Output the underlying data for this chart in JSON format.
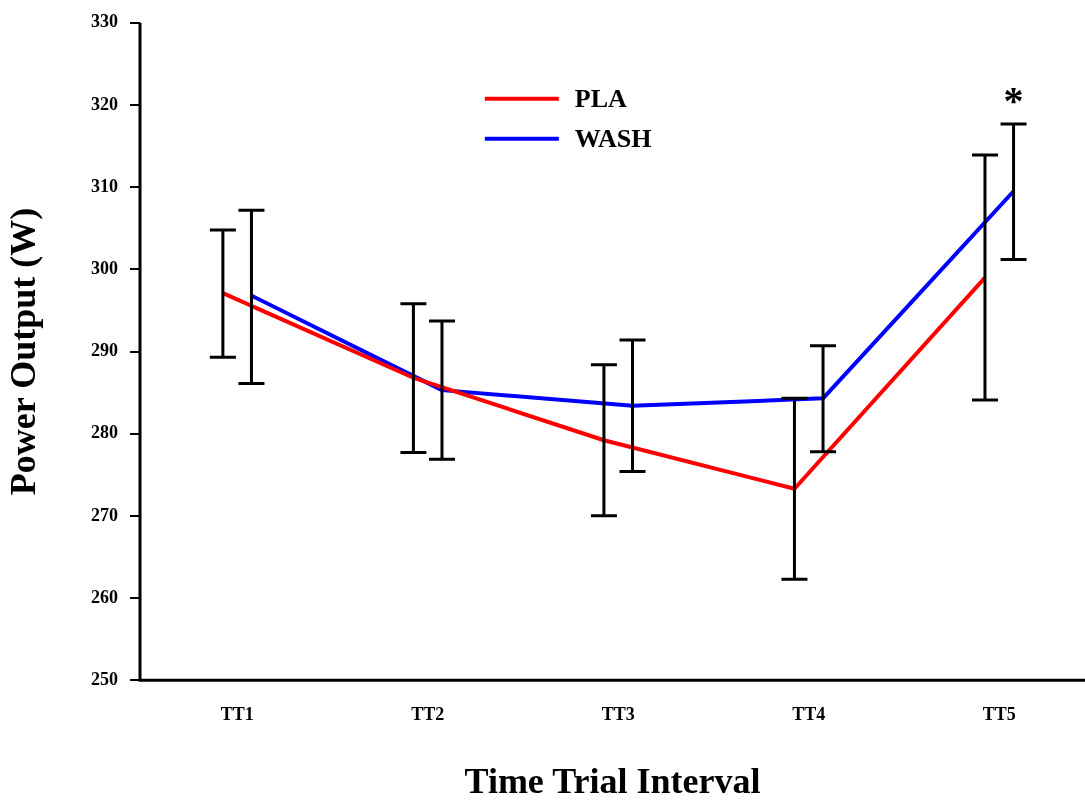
{
  "chart_data": {
    "type": "line",
    "xlabel": "Time Trial Interval",
    "ylabel": "Power Output (W)",
    "categories": [
      "TT1",
      "TT2",
      "TT3",
      "TT4",
      "TT5"
    ],
    "series": [
      {
        "name": "PLA",
        "color": "#ff0000",
        "values": [
          297.1,
          286.8,
          279.2,
          273.3,
          299.0
        ],
        "errors": [
          [
            289.3,
            304.8
          ],
          [
            277.7,
            295.8
          ],
          [
            270.0,
            288.4
          ],
          [
            262.3,
            284.3
          ],
          [
            284.1,
            313.9
          ]
        ]
      },
      {
        "name": "WASH",
        "color": "#0000ff",
        "values": [
          296.8,
          285.3,
          283.4,
          284.3,
          309.5
        ],
        "errors": [
          [
            286.1,
            307.2
          ],
          [
            276.9,
            293.7
          ],
          [
            275.4,
            291.4
          ],
          [
            277.8,
            290.7
          ],
          [
            301.2,
            317.7
          ]
        ]
      }
    ],
    "ylim": [
      250,
      330
    ],
    "yticks": [
      250,
      260,
      270,
      280,
      290,
      300,
      310,
      320,
      330
    ],
    "annotations": [
      "*"
    ],
    "legend": "top",
    "grid": false,
    "marker": "none",
    "line_style": "solid"
  }
}
